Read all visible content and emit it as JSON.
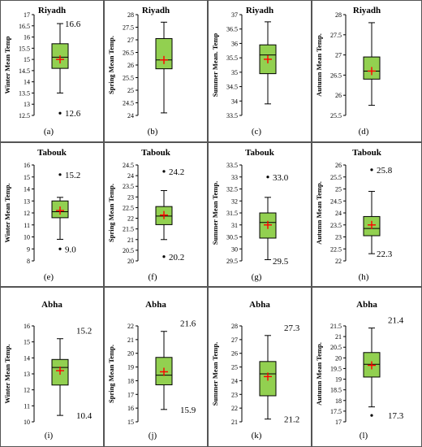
{
  "chart_data": [
    {
      "type": "boxplot",
      "label": "(a)",
      "title": "Riyadh",
      "ylabel": "Winter Mean Temp",
      "ylim": [
        12.5,
        17
      ],
      "ticks": [
        12.5,
        13,
        13.5,
        14,
        14.5,
        15,
        15.5,
        16,
        16.5,
        17
      ],
      "tick_labels": [
        "12.5",
        "13",
        "13.5",
        "14",
        "14.5",
        "15",
        "15.5",
        "16",
        "16.5",
        "17"
      ],
      "box": {
        "min": 13.5,
        "q1": 14.6,
        "median": 15.1,
        "q3": 15.7,
        "max": 16.6,
        "mean": 15.0
      },
      "outliers": [
        12.6
      ],
      "annotations": [
        {
          "text": "16.6",
          "y": 16.6
        },
        {
          "text": "12.6",
          "y": 12.6
        }
      ]
    },
    {
      "type": "boxplot",
      "label": "(b)",
      "title": "Riyadh",
      "ylabel": "Spring Mean Temp.",
      "ylim": [
        24,
        28
      ],
      "ticks": [
        24,
        24.5,
        25,
        25.5,
        26,
        26.5,
        27,
        27.5,
        28
      ],
      "tick_labels": [
        "24",
        "24.5",
        "25",
        "25.5",
        "26",
        "26.5",
        "27",
        "27.5",
        "28"
      ],
      "box": {
        "min": 24.1,
        "q1": 25.85,
        "median": 26.2,
        "q3": 27.05,
        "max": 27.7,
        "mean": 26.2
      },
      "outliers": [],
      "annotations": []
    },
    {
      "type": "boxplot",
      "label": "(c)",
      "title": "Riyadh",
      "ylabel": "Summer Mean. Temp",
      "ylim": [
        33.5,
        37
      ],
      "ticks": [
        33.5,
        34,
        34.5,
        35,
        35.5,
        36,
        36.5,
        37
      ],
      "tick_labels": [
        "33.5",
        "34",
        "34.5",
        "35",
        "35.5",
        "36",
        "36.5",
        "37"
      ],
      "box": {
        "min": 33.9,
        "q1": 34.95,
        "median": 35.6,
        "q3": 35.95,
        "max": 36.75,
        "mean": 35.45
      },
      "outliers": [],
      "annotations": []
    },
    {
      "type": "boxplot",
      "label": "(d)",
      "title": "Riyadh",
      "ylabel": "Autumn Mean Temp.",
      "ylim": [
        25.5,
        28
      ],
      "ticks": [
        25.5,
        26,
        26.5,
        27,
        27.5,
        28
      ],
      "tick_labels": [
        "25.5",
        "26",
        "26.5",
        "27",
        "27.5",
        "28"
      ],
      "box": {
        "min": 25.75,
        "q1": 26.4,
        "median": 26.6,
        "q3": 26.95,
        "max": 27.8,
        "mean": 26.6
      },
      "outliers": [],
      "annotations": []
    },
    {
      "type": "boxplot",
      "label": "(e)",
      "title": "Tabouk",
      "ylabel": "Winter Mean Temp.",
      "ylim": [
        8,
        16
      ],
      "ticks": [
        8,
        9,
        10,
        11,
        12,
        13,
        14,
        15,
        16
      ],
      "tick_labels": [
        "8",
        "9",
        "10",
        "11",
        "12",
        "13",
        "14",
        "15",
        "16"
      ],
      "box": {
        "min": 9.8,
        "q1": 11.6,
        "median": 12.1,
        "q3": 13.0,
        "max": 13.3,
        "mean": 12.2
      },
      "outliers": [
        15.2,
        9.0
      ],
      "annotations": [
        {
          "text": "15.2",
          "y": 15.2
        },
        {
          "text": "9.0",
          "y": 9.0
        }
      ]
    },
    {
      "type": "boxplot",
      "label": "(f)",
      "title": "Tabouk",
      "ylabel": "Spring Mean Temp.",
      "ylim": [
        20,
        24.5
      ],
      "ticks": [
        20,
        20.5,
        21,
        21.5,
        22,
        22.5,
        23,
        23.5,
        24,
        24.5
      ],
      "tick_labels": [
        "20",
        "20.5",
        "21",
        "21.5",
        "22",
        "22.5",
        "23",
        "23.5",
        "24",
        "24.5"
      ],
      "box": {
        "min": 21.0,
        "q1": 21.7,
        "median": 22.1,
        "q3": 22.55,
        "max": 23.3,
        "mean": 22.15
      },
      "outliers": [
        24.2,
        20.2
      ],
      "annotations": [
        {
          "text": "24.2",
          "y": 24.2
        },
        {
          "text": "20.2",
          "y": 20.2
        }
      ]
    },
    {
      "type": "boxplot",
      "label": "(g)",
      "title": "Tabouk",
      "ylabel": "Summer Mean Temp.",
      "ylim": [
        29.5,
        33.5
      ],
      "ticks": [
        29.5,
        30,
        30.5,
        31,
        31.5,
        32,
        32.5,
        33,
        33.5
      ],
      "tick_labels": [
        "29.5",
        "30",
        "30.5",
        "31",
        "31.5",
        "32",
        "32.5",
        "33",
        "33.5"
      ],
      "box": {
        "min": 29.55,
        "q1": 30.45,
        "median": 31.1,
        "q3": 31.5,
        "max": 32.15,
        "mean": 31.0
      },
      "outliers": [
        33.0
      ],
      "annotations": [
        {
          "text": "33.0",
          "y": 33.0
        },
        {
          "text": "29.5",
          "y": 29.5
        }
      ]
    },
    {
      "type": "boxplot",
      "label": "(h)",
      "title": "Tabouk",
      "ylabel": "Autumn Mean Temp.",
      "ylim": [
        22,
        26
      ],
      "ticks": [
        22,
        22.5,
        23,
        23.5,
        24,
        24.5,
        25,
        25.5,
        26
      ],
      "tick_labels": [
        "22",
        "22.5",
        "23",
        "23.5",
        "24",
        "24.5",
        "25",
        "25.5",
        "26"
      ],
      "box": {
        "min": 22.3,
        "q1": 23.05,
        "median": 23.35,
        "q3": 23.85,
        "max": 24.9,
        "mean": 23.5
      },
      "outliers": [
        25.8
      ],
      "annotations": [
        {
          "text": "25.8",
          "y": 25.8
        },
        {
          "text": "22.3",
          "y": 22.3
        }
      ]
    },
    {
      "type": "boxplot",
      "label": "(i)",
      "title": "Abha",
      "ylabel": "Winter Mean Temp.",
      "ylim": [
        10,
        16
      ],
      "ticks": [
        10,
        11,
        12,
        13,
        14,
        15,
        16
      ],
      "tick_labels": [
        "10",
        "11",
        "12",
        "13",
        "14",
        "15",
        "16"
      ],
      "box": {
        "min": 10.4,
        "q1": 12.3,
        "median": 13.4,
        "q3": 13.9,
        "max": 15.2,
        "mean": 13.2
      },
      "outliers": [],
      "annotations": [
        {
          "text": "15.2",
          "y": 15.2
        },
        {
          "text": "10.4",
          "y": 10.4
        }
      ]
    },
    {
      "type": "boxplot",
      "label": "(j)",
      "title": "Abha",
      "ylabel": "Spring Mean Temp.",
      "ylim": [
        15,
        22
      ],
      "ticks": [
        15,
        16,
        17,
        18,
        19,
        20,
        21,
        22
      ],
      "tick_labels": [
        "15",
        "16",
        "17",
        "18",
        "19",
        "20",
        "21",
        "22"
      ],
      "box": {
        "min": 15.9,
        "q1": 17.7,
        "median": 18.4,
        "q3": 19.7,
        "max": 21.6,
        "mean": 18.65
      },
      "outliers": [],
      "annotations": [
        {
          "text": "21.6",
          "y": 21.6
        },
        {
          "text": "15.9",
          "y": 15.9
        }
      ]
    },
    {
      "type": "boxplot",
      "label": "(k)",
      "title": "Abha",
      "ylabel": "Summer Mean Temp.",
      "ylim": [
        21,
        28
      ],
      "ticks": [
        21,
        22,
        23,
        24,
        25,
        26,
        27,
        28
      ],
      "tick_labels": [
        "21",
        "22",
        "23",
        "24",
        "25",
        "26",
        "27",
        "28"
      ],
      "box": {
        "min": 21.2,
        "q1": 22.9,
        "median": 24.5,
        "q3": 25.4,
        "max": 27.3,
        "mean": 24.3
      },
      "outliers": [],
      "annotations": [
        {
          "text": "27.3",
          "y": 27.3
        },
        {
          "text": "21.2",
          "y": 21.2
        }
      ]
    },
    {
      "type": "boxplot",
      "label": "(l)",
      "title": "Abha",
      "ylabel": "Autumn Mean Temp.",
      "ylim": [
        17,
        21.5
      ],
      "ticks": [
        17,
        17.5,
        18,
        18.5,
        19,
        19.5,
        20,
        20.5,
        21,
        21.5
      ],
      "tick_labels": [
        "17",
        "17.5",
        "18",
        "18.5",
        "19",
        "19.5",
        "20",
        "20.5",
        "21",
        "21.5"
      ],
      "box": {
        "min": 17.7,
        "q1": 19.1,
        "median": 19.7,
        "q3": 20.25,
        "max": 21.4,
        "mean": 19.65
      },
      "outliers": [
        17.3
      ],
      "annotations": [
        {
          "text": "21.4",
          "y": 21.4
        },
        {
          "text": "17.3",
          "y": 17.3
        }
      ]
    }
  ],
  "colors": {
    "box_fill": "#92d050",
    "mean_marker": "#ff0000",
    "frame": "#555555"
  }
}
